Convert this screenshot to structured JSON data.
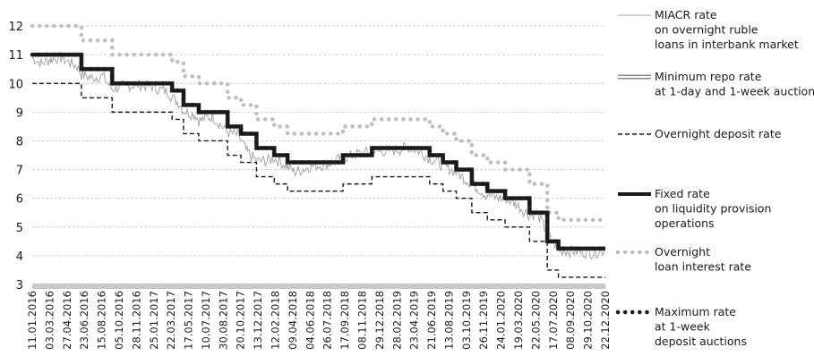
{
  "chart_data": {
    "type": "line",
    "title": "",
    "xlabel": "",
    "ylabel": "",
    "ylim": [
      3,
      12.5
    ],
    "yticks": [
      3,
      4,
      5,
      6,
      7,
      8,
      9,
      10,
      11,
      12
    ],
    "xrange": [
      "2016-01-11",
      "2020-12-22"
    ],
    "xtick_labels": [
      "11.01.2016",
      "03.03.2016",
      "27.04.2016",
      "23.06.2016",
      "15.08.2016",
      "05.10.2016",
      "28.11.2016",
      "25.01.2017",
      "22.03.2017",
      "17.05.2017",
      "10.07.2017",
      "30.08.2017",
      "20.10.2017",
      "13.12.2017",
      "12.02.2018",
      "09.04.2018",
      "04.06.2018",
      "26.07.2018",
      "17.09.2018",
      "08.11.2018",
      "29.12.2018",
      "28.02.2019",
      "23.04.2019",
      "21.06.2019",
      "13.08.2019",
      "03.10.2019",
      "26.11.2019",
      "24.01.2020",
      "19.03.2020",
      "22.05.2020",
      "17.07.2020",
      "08.09.2020",
      "29.10.2020",
      "22.12.2020"
    ],
    "grid": true,
    "legend_position": "right",
    "colors": {
      "miacr": "#a6a6a6",
      "repo_outer": "#8c8c8c",
      "repo_inner": "#ffffff",
      "deposit": "#1a1a1a",
      "fixed": "#1a1a1a",
      "overnight_loan": "#bfbfbf",
      "max_deposit": "#1a1a1a",
      "grid": "#cfcfcf",
      "baseline": "#c8c8c8"
    },
    "series": [
      {
        "key": "miacr",
        "name": "MIACR rate\non overnight ruble\nloans in interbank market",
        "style": "noisy",
        "points": [
          [
            "2016-01-11",
            10.9
          ],
          [
            "2016-02-10",
            10.7
          ],
          [
            "2016-03-10",
            10.85
          ],
          [
            "2016-04-10",
            10.9
          ],
          [
            "2016-05-10",
            10.7
          ],
          [
            "2016-06-01",
            10.6
          ],
          [
            "2016-06-14",
            10.3
          ],
          [
            "2016-07-15",
            10.2
          ],
          [
            "2016-08-20",
            10.25
          ],
          [
            "2016-09-19",
            9.8
          ],
          [
            "2016-10-20",
            9.9
          ],
          [
            "2016-12-01",
            9.95
          ],
          [
            "2017-01-15",
            9.9
          ],
          [
            "2017-03-15",
            9.7
          ],
          [
            "2017-03-27",
            9.5
          ],
          [
            "2017-04-20",
            9.3
          ],
          [
            "2017-05-02",
            9.05
          ],
          [
            "2017-06-10",
            8.9
          ],
          [
            "2017-06-19",
            8.7
          ],
          [
            "2017-08-01",
            8.85
          ],
          [
            "2017-09-18",
            8.3
          ],
          [
            "2017-10-20",
            8.2
          ],
          [
            "2017-10-30",
            8.0
          ],
          [
            "2017-11-20",
            7.6
          ],
          [
            "2017-12-18",
            7.3
          ],
          [
            "2018-01-20",
            7.3
          ],
          [
            "2018-02-12",
            7.4
          ],
          [
            "2018-03-26",
            7.1
          ],
          [
            "2018-04-20",
            6.9
          ],
          [
            "2018-06-01",
            7.1
          ],
          [
            "2018-08-01",
            7.2
          ],
          [
            "2018-09-17",
            7.4
          ],
          [
            "2018-11-01",
            7.55
          ],
          [
            "2018-12-17",
            7.6
          ],
          [
            "2019-02-01",
            7.65
          ],
          [
            "2019-03-15",
            7.7
          ],
          [
            "2019-04-15",
            7.8
          ],
          [
            "2019-05-20",
            7.6
          ],
          [
            "2019-06-17",
            7.4
          ],
          [
            "2019-07-29",
            7.15
          ],
          [
            "2019-09-09",
            6.9
          ],
          [
            "2019-10-28",
            6.5
          ],
          [
            "2019-12-16",
            6.1
          ],
          [
            "2020-01-20",
            6.0
          ],
          [
            "2020-02-10",
            6.0
          ],
          [
            "2020-03-15",
            5.8
          ],
          [
            "2020-04-27",
            5.4
          ],
          [
            "2020-05-20",
            5.5
          ],
          [
            "2020-06-22",
            4.8
          ],
          [
            "2020-07-27",
            4.2
          ],
          [
            "2020-09-15",
            4.15
          ],
          [
            "2020-11-15",
            4.1
          ],
          [
            "2020-12-22",
            4.2
          ]
        ]
      },
      {
        "key": "repo",
        "name": "Minimum repo rate\nat 1-day and 1-week auctions",
        "style": "double",
        "points": [
          [
            "2016-01-11",
            11.0
          ],
          [
            "2016-06-14",
            10.5
          ],
          [
            "2016-09-19",
            10.0
          ],
          [
            "2017-03-27",
            9.75
          ],
          [
            "2017-05-02",
            9.25
          ],
          [
            "2017-06-19",
            9.0
          ],
          [
            "2017-09-18",
            8.5
          ],
          [
            "2017-10-30",
            8.25
          ],
          [
            "2017-12-18",
            7.75
          ],
          [
            "2018-02-12",
            7.5
          ],
          [
            "2018-03-26",
            7.25
          ],
          [
            "2018-09-17",
            7.5
          ],
          [
            "2018-12-17",
            7.75
          ],
          [
            "2019-06-17",
            7.5
          ],
          [
            "2019-07-29",
            7.25
          ],
          [
            "2019-09-09",
            7.0
          ],
          [
            "2019-10-28",
            6.5
          ],
          [
            "2019-12-16",
            6.25
          ],
          [
            "2020-02-10",
            6.0
          ],
          [
            "2020-04-27",
            5.5
          ],
          [
            "2020-06-22",
            4.5
          ],
          [
            "2020-07-27",
            4.25
          ],
          [
            "2020-12-22",
            4.25
          ]
        ]
      },
      {
        "key": "deposit",
        "name": "Overnight deposit rate",
        "style": "dashed",
        "points": [
          [
            "2016-01-11",
            10.0
          ],
          [
            "2016-06-14",
            9.5
          ],
          [
            "2016-09-19",
            9.0
          ],
          [
            "2017-03-27",
            8.75
          ],
          [
            "2017-05-02",
            8.25
          ],
          [
            "2017-06-19",
            8.0
          ],
          [
            "2017-09-18",
            7.5
          ],
          [
            "2017-10-30",
            7.25
          ],
          [
            "2017-12-18",
            6.75
          ],
          [
            "2018-02-12",
            6.5
          ],
          [
            "2018-03-26",
            6.25
          ],
          [
            "2018-09-17",
            6.5
          ],
          [
            "2018-12-17",
            6.75
          ],
          [
            "2019-06-17",
            6.5
          ],
          [
            "2019-07-29",
            6.25
          ],
          [
            "2019-09-09",
            6.0
          ],
          [
            "2019-10-28",
            5.5
          ],
          [
            "2019-12-16",
            5.25
          ],
          [
            "2020-02-10",
            5.0
          ],
          [
            "2020-04-27",
            4.5
          ],
          [
            "2020-06-22",
            3.5
          ],
          [
            "2020-07-27",
            3.25
          ],
          [
            "2020-12-22",
            3.25
          ]
        ]
      },
      {
        "key": "fixed",
        "name": "Fixed rate\non liquidity provision\noperations",
        "style": "thick",
        "points": [
          [
            "2016-01-11",
            11.0
          ],
          [
            "2016-06-14",
            10.5
          ],
          [
            "2016-09-19",
            10.0
          ],
          [
            "2017-03-27",
            9.75
          ],
          [
            "2017-05-02",
            9.25
          ],
          [
            "2017-06-19",
            9.0
          ],
          [
            "2017-09-18",
            8.5
          ],
          [
            "2017-10-30",
            8.25
          ],
          [
            "2017-12-18",
            7.75
          ],
          [
            "2018-02-12",
            7.5
          ],
          [
            "2018-03-26",
            7.25
          ],
          [
            "2018-09-17",
            7.5
          ],
          [
            "2018-12-17",
            7.75
          ],
          [
            "2019-06-17",
            7.5
          ],
          [
            "2019-07-29",
            7.25
          ],
          [
            "2019-09-09",
            7.0
          ],
          [
            "2019-10-28",
            6.5
          ],
          [
            "2019-12-16",
            6.25
          ],
          [
            "2020-02-10",
            6.0
          ],
          [
            "2020-04-27",
            5.5
          ],
          [
            "2020-06-22",
            4.5
          ],
          [
            "2020-07-27",
            4.25
          ],
          [
            "2020-12-22",
            4.25
          ]
        ]
      },
      {
        "key": "overnight_loan",
        "name": "Overnight\nloan interest rate",
        "style": "dotted-light",
        "points": [
          [
            "2016-01-11",
            12.0
          ],
          [
            "2016-06-14",
            11.5
          ],
          [
            "2016-09-19",
            11.0
          ],
          [
            "2017-03-27",
            10.75
          ],
          [
            "2017-05-02",
            10.25
          ],
          [
            "2017-06-19",
            10.0
          ],
          [
            "2017-09-18",
            9.5
          ],
          [
            "2017-10-30",
            9.25
          ],
          [
            "2017-12-18",
            8.75
          ],
          [
            "2018-02-12",
            8.5
          ],
          [
            "2018-03-26",
            8.25
          ],
          [
            "2018-09-17",
            8.5
          ],
          [
            "2018-12-17",
            8.75
          ],
          [
            "2019-06-17",
            8.5
          ],
          [
            "2019-07-29",
            8.25
          ],
          [
            "2019-09-09",
            8.0
          ],
          [
            "2019-10-28",
            7.5
          ],
          [
            "2019-12-16",
            7.25
          ],
          [
            "2020-02-10",
            7.0
          ],
          [
            "2020-04-27",
            6.5
          ],
          [
            "2020-06-22",
            5.5
          ],
          [
            "2020-07-27",
            5.25
          ],
          [
            "2020-12-22",
            5.25
          ]
        ]
      },
      {
        "key": "max_deposit",
        "name": "Maximum rate\nat 1-week\ndeposit auctions",
        "style": "dotted-dark",
        "points": [
          [
            "2016-01-11",
            11.0
          ],
          [
            "2016-06-14",
            10.5
          ],
          [
            "2016-09-19",
            10.0
          ],
          [
            "2017-03-27",
            9.75
          ],
          [
            "2017-05-02",
            9.25
          ],
          [
            "2017-06-19",
            9.0
          ],
          [
            "2017-09-18",
            8.5
          ],
          [
            "2017-10-30",
            8.25
          ],
          [
            "2017-12-18",
            7.75
          ],
          [
            "2018-02-12",
            7.5
          ],
          [
            "2018-03-26",
            7.25
          ],
          [
            "2018-09-17",
            7.5
          ],
          [
            "2018-12-17",
            7.75
          ],
          [
            "2019-06-17",
            7.5
          ],
          [
            "2019-07-29",
            7.25
          ],
          [
            "2019-09-09",
            7.0
          ],
          [
            "2019-10-28",
            6.5
          ],
          [
            "2019-12-16",
            6.25
          ],
          [
            "2020-02-10",
            6.0
          ],
          [
            "2020-04-27",
            5.5
          ],
          [
            "2020-06-22",
            4.5
          ],
          [
            "2020-07-27",
            4.25
          ],
          [
            "2020-12-22",
            4.25
          ]
        ]
      }
    ]
  }
}
